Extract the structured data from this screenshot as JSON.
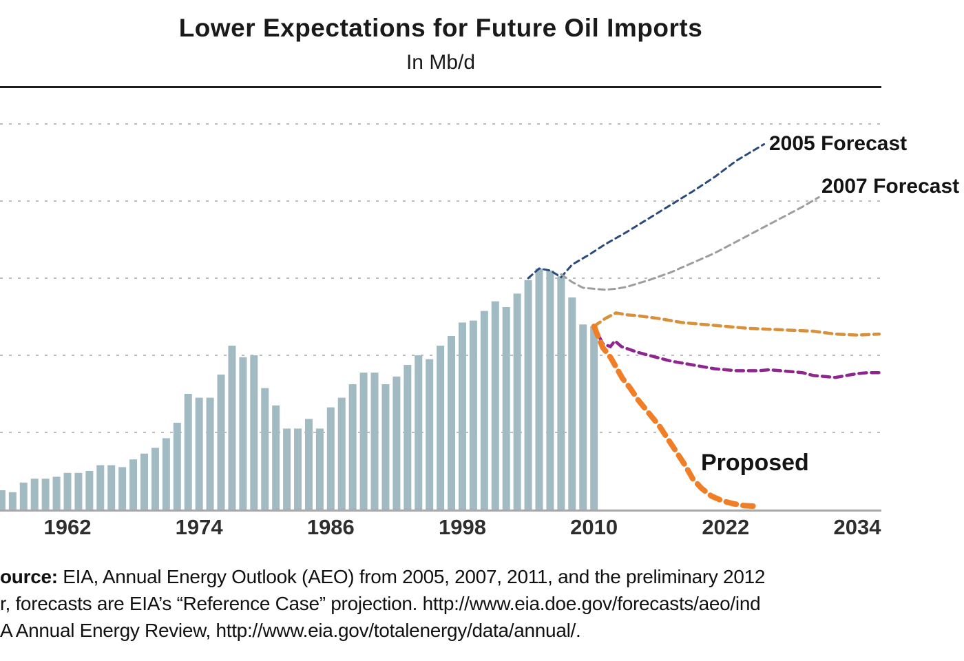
{
  "header": {
    "title": "Lower Expectations for Future Oil Imports",
    "subtitle": "In Mb/d"
  },
  "chart_data": {
    "type": "bar+line",
    "title": "Lower Expectations for Future Oil Imports",
    "unit": "Mb/d",
    "x_axis": {
      "tick_labels": [
        1962,
        1974,
        1986,
        1998,
        2010,
        2022,
        2034
      ],
      "range": [
        1955.5,
        2036.3
      ]
    },
    "y_axis": {
      "range": [
        0,
        21.8
      ],
      "gridline_values": [
        4,
        8,
        12,
        16,
        20
      ],
      "tick_labels_visible": false,
      "grid_style": "dashed"
    },
    "bars": {
      "name": "historical-oil-imports",
      "color": "#a2bbc3",
      "years": [
        1956,
        1957,
        1958,
        1959,
        1960,
        1961,
        1962,
        1963,
        1964,
        1965,
        1966,
        1967,
        1968,
        1969,
        1970,
        1971,
        1972,
        1973,
        1974,
        1975,
        1976,
        1977,
        1978,
        1979,
        1980,
        1981,
        1982,
        1983,
        1984,
        1985,
        1986,
        1987,
        1988,
        1989,
        1990,
        1991,
        1992,
        1993,
        1994,
        1995,
        1996,
        1997,
        1998,
        1999,
        2000,
        2001,
        2002,
        2003,
        2004,
        2005,
        2006,
        2007,
        2008,
        2009,
        2010
      ],
      "values": [
        1.0,
        0.9,
        1.4,
        1.6,
        1.6,
        1.7,
        1.9,
        1.9,
        2.0,
        2.3,
        2.3,
        2.2,
        2.6,
        2.9,
        3.2,
        3.7,
        4.5,
        6.0,
        5.8,
        5.8,
        7.0,
        8.5,
        7.9,
        8.0,
        6.3,
        5.4,
        4.2,
        4.2,
        4.7,
        4.2,
        5.3,
        5.8,
        6.5,
        7.1,
        7.1,
        6.5,
        6.9,
        7.5,
        8.0,
        7.8,
        8.5,
        9.0,
        9.7,
        9.8,
        10.3,
        10.8,
        10.5,
        11.2,
        11.9,
        12.5,
        12.4,
        12.1,
        11.0,
        9.6,
        9.5
      ]
    },
    "series": [
      {
        "id": "forecast-2005",
        "label": "2005 Forecast",
        "color": "#2b4a7c",
        "width": 3,
        "dash": "8 6",
        "points": [
          [
            2004,
            12.0
          ],
          [
            2005,
            12.5
          ],
          [
            2006,
            12.4
          ],
          [
            2007,
            12.05
          ],
          [
            2008,
            12.7
          ],
          [
            2009.5,
            13.2
          ],
          [
            2011,
            13.75
          ],
          [
            2013,
            14.4
          ],
          [
            2015,
            15.1
          ],
          [
            2017,
            15.8
          ],
          [
            2019,
            16.5
          ],
          [
            2021,
            17.25
          ],
          [
            2023,
            18.1
          ],
          [
            2025.5,
            18.95
          ]
        ]
      },
      {
        "id": "forecast-2007",
        "label": "2007 Forecast",
        "color": "#9d9d9d",
        "width": 3,
        "dash": "9 6",
        "points": [
          [
            2007,
            12.2
          ],
          [
            2008,
            11.8
          ],
          [
            2009,
            11.5
          ],
          [
            2010,
            11.45
          ],
          [
            2011,
            11.4
          ],
          [
            2012,
            11.45
          ],
          [
            2013,
            11.55
          ],
          [
            2015,
            11.9
          ],
          [
            2017,
            12.3
          ],
          [
            2019,
            12.8
          ],
          [
            2021,
            13.3
          ],
          [
            2023,
            13.9
          ],
          [
            2025,
            14.5
          ],
          [
            2027,
            15.1
          ],
          [
            2029,
            15.7
          ],
          [
            2030.5,
            16.2
          ]
        ]
      },
      {
        "id": "forecast-orange-unlabeled",
        "label": "",
        "color": "#d8903b",
        "width": 4.5,
        "dash": "11 7",
        "points": [
          [
            2010,
            9.5
          ],
          [
            2011,
            9.9
          ],
          [
            2012,
            10.2
          ],
          [
            2013,
            10.1
          ],
          [
            2014,
            10.05
          ],
          [
            2016,
            9.9
          ],
          [
            2018,
            9.7
          ],
          [
            2020,
            9.6
          ],
          [
            2022,
            9.5
          ],
          [
            2024,
            9.4
          ],
          [
            2026,
            9.35
          ],
          [
            2028,
            9.3
          ],
          [
            2030,
            9.25
          ],
          [
            2032,
            9.1
          ],
          [
            2034,
            9.05
          ],
          [
            2036,
            9.1
          ]
        ]
      },
      {
        "id": "forecast-purple-unlabeled",
        "label": "",
        "color": "#8f268f",
        "width": 4.5,
        "dash": "11 7",
        "points": [
          [
            2010,
            9.5
          ],
          [
            2010.8,
            8.6
          ],
          [
            2011.5,
            8.45
          ],
          [
            2011.9,
            8.75
          ],
          [
            2012.5,
            8.45
          ],
          [
            2013,
            8.35
          ],
          [
            2014,
            8.15
          ],
          [
            2015,
            8.0
          ],
          [
            2016,
            7.85
          ],
          [
            2017,
            7.7
          ],
          [
            2018,
            7.6
          ],
          [
            2019,
            7.5
          ],
          [
            2020,
            7.4
          ],
          [
            2021,
            7.3
          ],
          [
            2022,
            7.25
          ],
          [
            2023,
            7.2
          ],
          [
            2025,
            7.2
          ],
          [
            2026,
            7.25
          ],
          [
            2027,
            7.2
          ],
          [
            2028,
            7.15
          ],
          [
            2029,
            7.1
          ],
          [
            2030,
            6.95
          ],
          [
            2031,
            6.9
          ],
          [
            2032,
            6.85
          ],
          [
            2033,
            6.95
          ],
          [
            2034,
            7.05
          ],
          [
            2035,
            7.1
          ],
          [
            2036,
            7.1
          ]
        ]
      },
      {
        "id": "proposed",
        "label": "Proposed",
        "color": "#f07e26",
        "width": 8,
        "dash": "15 10",
        "points": [
          [
            2010,
            9.5
          ],
          [
            2010.8,
            8.4
          ],
          [
            2011.5,
            7.9
          ],
          [
            2012,
            7.4
          ],
          [
            2012.6,
            6.8
          ],
          [
            2013.3,
            6.3
          ],
          [
            2014,
            5.7
          ],
          [
            2015,
            5.0
          ],
          [
            2016,
            4.3
          ],
          [
            2016.8,
            3.6
          ],
          [
            2017.5,
            3.0
          ],
          [
            2018.3,
            2.3
          ],
          [
            2019,
            1.6
          ],
          [
            2019.8,
            1.1
          ],
          [
            2020.7,
            0.7
          ],
          [
            2021.7,
            0.45
          ],
          [
            2022.7,
            0.3
          ],
          [
            2023.7,
            0.2
          ],
          [
            2024.5,
            0.18
          ]
        ]
      }
    ]
  },
  "style": {
    "bar_color": "#a2bbc3",
    "grid_color": "#bcbcbc",
    "axis_color": "#a8a8a8",
    "rule_color": "#1c1c1c"
  },
  "footer": {
    "line1_bold": "ource:",
    "line1_rest": " EIA, Annual Energy Outlook (AEO) from 2005, 2007, 2011, and the preliminary 2012",
    "line2": "r, forecasts are EIA’s “Reference Case” projection. http://www.eia.doe.gov/forecasts/aeo/ind",
    "line3": "A Annual Energy Review, http://www.eia.gov/totalenergy/data/annual/."
  }
}
